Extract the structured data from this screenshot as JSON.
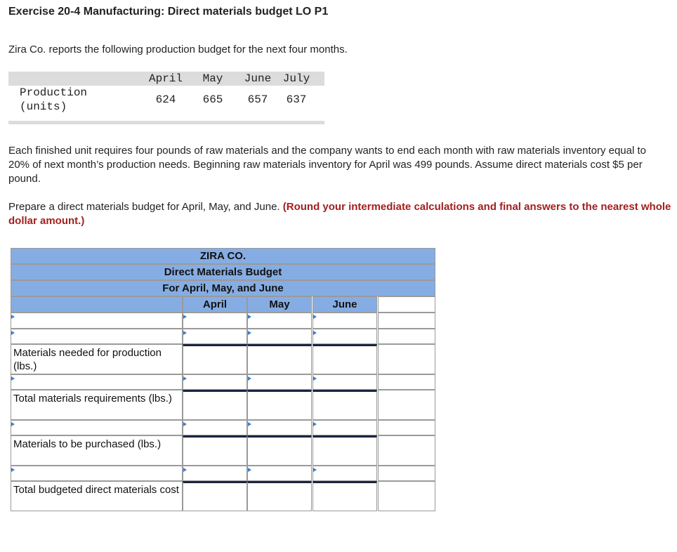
{
  "header": {
    "title": "Exercise 20-4 Manufacturing: Direct materials budget LO P1"
  },
  "intro": "Zira Co. reports the following production budget for the next four months.",
  "production_table": {
    "columns": [
      "April",
      "May",
      "June",
      "July"
    ],
    "row_label": "Production (units)",
    "values": [
      624,
      665,
      657,
      637
    ]
  },
  "paragraph": "Each finished unit requires four pounds of raw materials and the company wants to end each month with raw materials inventory equal to 20% of next month’s production needs. Beginning raw materials inventory for April was 499 pounds. Assume direct materials cost $5 per pound.",
  "instruction": {
    "text": "Prepare a direct materials budget for April, May, and June.",
    "note": "(Round your intermediate calculations and final answers to the nearest whole dollar amount.)"
  },
  "budget": {
    "title_lines": [
      "ZIRA CO.",
      "Direct Materials Budget",
      "For April, May, and June"
    ],
    "columns": [
      "April",
      "May",
      "June"
    ],
    "row_labels": [
      "Materials needed for production (lbs.)",
      "Total materials requirements (lbs.)",
      "Materials to be purchased (lbs.)",
      "Total budgeted direct materials cost"
    ]
  }
}
